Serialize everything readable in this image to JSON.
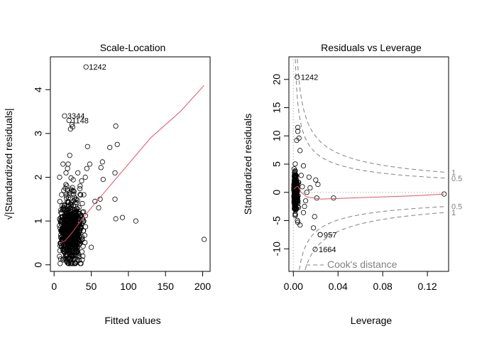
{
  "chart_data": [
    {
      "type": "scatter",
      "title": "Scale-Location",
      "xlabel": "Fitted values",
      "ylabel": "√|Standardized residuals|",
      "xlim": [
        -5,
        210
      ],
      "ylim": [
        -0.15,
        4.75
      ],
      "xticks": [
        0,
        50,
        100,
        150,
        200
      ],
      "yticks": [
        0,
        1,
        2,
        3,
        4
      ],
      "x_tick_labels": [
        "0",
        "50",
        "100",
        "150",
        "200"
      ],
      "y_tick_labels": [
        "0",
        "1",
        "2",
        "3",
        "4"
      ],
      "smooth": {
        "x": [
          8,
          15,
          25,
          40,
          60,
          90,
          130,
          170,
          202
        ],
        "y": [
          0.5,
          0.55,
          0.75,
          1.1,
          1.5,
          2.1,
          2.9,
          3.5,
          4.1
        ],
        "color": "#DF536B"
      },
      "labeled_points": [
        {
          "label": "1242",
          "x": 43,
          "y": 4.52
        },
        {
          "label": "3344",
          "x": 14,
          "y": 3.4
        },
        {
          "label": "1148",
          "x": 20,
          "y": 3.3
        }
      ],
      "extra_points": [
        [
          202,
          0.58
        ],
        [
          110,
          1.0
        ],
        [
          92,
          1.08
        ],
        [
          83,
          1.05
        ],
        [
          82,
          1.5
        ],
        [
          82,
          2.1
        ],
        [
          85,
          2.75
        ],
        [
          83,
          3.17
        ],
        [
          75,
          2.68
        ],
        [
          65,
          2.35
        ],
        [
          66,
          1.95
        ],
        [
          63,
          2.22
        ],
        [
          62,
          1.5
        ],
        [
          60,
          1.3
        ],
        [
          55,
          1.45
        ],
        [
          50,
          0.4
        ],
        [
          48,
          2.3
        ],
        [
          45,
          2.7
        ],
        [
          44,
          2.2
        ],
        [
          42,
          2.0
        ],
        [
          40,
          1.6
        ],
        [
          40,
          1.0
        ],
        [
          38,
          1.4
        ],
        [
          35,
          1.8
        ],
        [
          32,
          2.1
        ],
        [
          30,
          1.5
        ],
        [
          28,
          1.25
        ],
        [
          27,
          0.9
        ],
        [
          25,
          3.15
        ],
        [
          24,
          3.2
        ],
        [
          22,
          3.1
        ],
        [
          21,
          2.5
        ],
        [
          19,
          2.3
        ],
        [
          18,
          2.2
        ],
        [
          17,
          1.8
        ],
        [
          16,
          2.1
        ],
        [
          15,
          1.75
        ],
        [
          13,
          1.7
        ],
        [
          12,
          2.3
        ],
        [
          10,
          1.6
        ]
      ]
    },
    {
      "type": "scatter",
      "title": "Residuals vs Leverage",
      "xlabel": "Leverage",
      "ylabel": "Standardized residuals",
      "xlim": [
        -0.004,
        0.139
      ],
      "ylim": [
        -14,
        24
      ],
      "xticks": [
        0.0,
        0.04,
        0.08,
        0.12
      ],
      "yticks": [
        -10,
        -5,
        0,
        5,
        10,
        15,
        20
      ],
      "x_tick_labels": [
        "0.00",
        "0.04",
        "0.08",
        "0.12"
      ],
      "y_tick_labels": [
        "-10",
        "-5",
        "0",
        "5",
        "10",
        "15",
        "20"
      ],
      "smooth": {
        "x": [
          0.0005,
          0.002,
          0.004,
          0.007,
          0.012,
          0.018,
          0.025,
          0.05,
          0.08,
          0.11,
          0.135
        ],
        "y": [
          0.6,
          0.9,
          1.1,
          0.0,
          -0.8,
          -1.0,
          -1.2,
          -1.0,
          -0.8,
          -0.6,
          -0.3
        ],
        "color": "#DF536B"
      },
      "cooks_levels": [
        0.5,
        1
      ],
      "cooks_level_labels": [
        "0.5",
        "1"
      ],
      "cooks_legend": "Cook's distance",
      "labeled_points": [
        {
          "label": "1242",
          "x": 0.0035,
          "y": 20.4
        },
        {
          "label": "957",
          "x": 0.024,
          "y": -7.5
        },
        {
          "label": "1664",
          "x": 0.0195,
          "y": -10.1
        }
      ],
      "extra_points": [
        [
          0.135,
          -0.3
        ],
        [
          0.036,
          -1.0
        ],
        [
          0.022,
          1.4
        ],
        [
          0.02,
          2.2
        ],
        [
          0.021,
          -1.0
        ],
        [
          0.019,
          -4.3
        ],
        [
          0.018,
          -6.3
        ],
        [
          0.024,
          -7.5
        ],
        [
          0.015,
          0.8
        ],
        [
          0.014,
          2.7
        ],
        [
          0.012,
          0.0
        ],
        [
          0.011,
          -1.5
        ],
        [
          0.01,
          -2.5
        ],
        [
          0.009,
          4.7
        ],
        [
          0.008,
          1.0
        ],
        [
          0.007,
          3.0
        ],
        [
          0.006,
          7.4
        ],
        [
          0.005,
          9.6
        ],
        [
          0.004,
          11.5
        ],
        [
          0.004,
          10.8
        ],
        [
          0.003,
          9.2
        ],
        [
          0.004,
          -5.3
        ],
        [
          0.006,
          -5.8
        ],
        [
          0.009,
          -3.6
        ]
      ]
    }
  ]
}
